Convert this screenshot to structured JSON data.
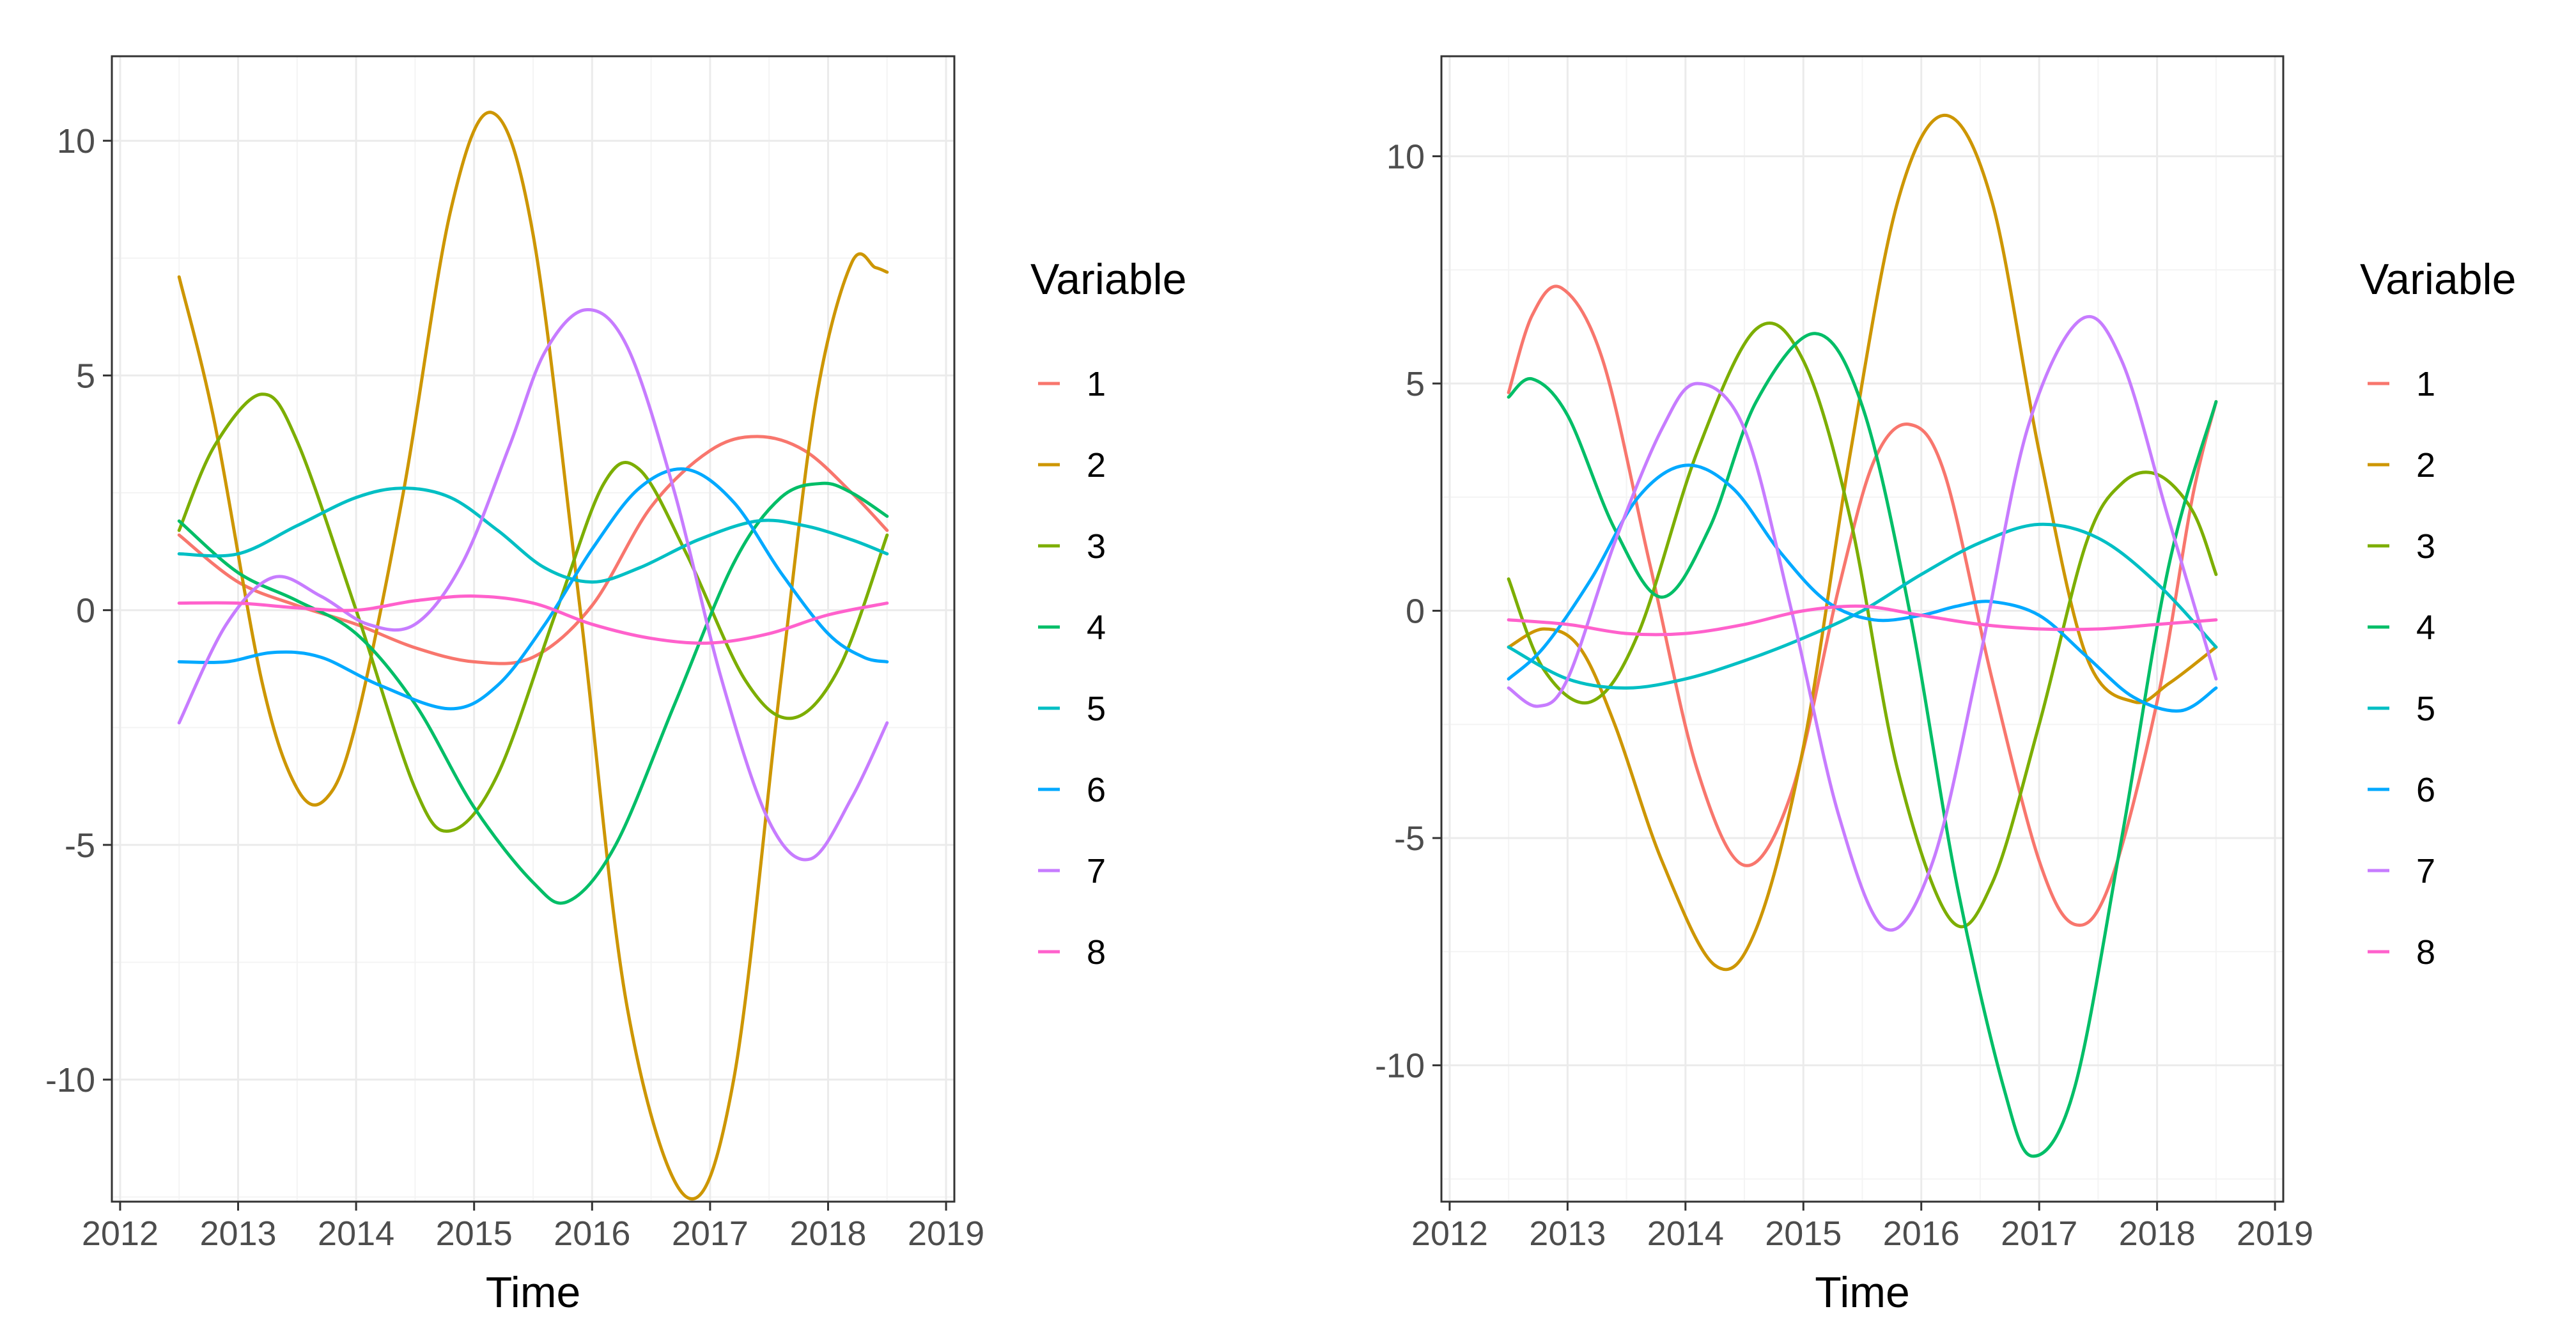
{
  "colors": {
    "1": "#F8766D",
    "2": "#CD9600",
    "3": "#7CAE00",
    "4": "#00BE67",
    "5": "#00BFC4",
    "6": "#00A9FF",
    "7": "#C77CFF",
    "8": "#FF61CC"
  },
  "chart_data": [
    {
      "type": "line",
      "title": "",
      "xlabel": "Time",
      "ylabel": "",
      "xlim": [
        2011.93,
        2019.07
      ],
      "ylim": [
        -12.6,
        11.8
      ],
      "xticks": [
        2012,
        2013,
        2014,
        2015,
        2016,
        2017,
        2018,
        2019
      ],
      "xtick_labels": [
        "2012",
        "2013",
        "2014",
        "2015",
        "2016",
        "2017",
        "2018",
        "2019"
      ],
      "yticks": [
        -10,
        -5,
        0,
        5,
        10
      ],
      "ytick_labels": [
        "-10",
        "-5",
        "0",
        "5",
        "10"
      ],
      "legend": {
        "title": "Variable",
        "position": "right",
        "entries": [
          "1",
          "2",
          "3",
          "4",
          "5",
          "6",
          "7",
          "8"
        ]
      },
      "series": [
        {
          "name": "1",
          "x": [
            2012.5,
            2013.0,
            2013.5,
            2014.0,
            2014.5,
            2015.0,
            2015.5,
            2016.0,
            2016.5,
            2017.0,
            2017.4,
            2017.8,
            2018.2,
            2018.5
          ],
          "y": [
            1.6,
            0.6,
            0.1,
            -0.3,
            -0.8,
            -1.1,
            -1.0,
            0.1,
            2.2,
            3.4,
            3.7,
            3.4,
            2.5,
            1.7
          ]
        },
        {
          "name": "2",
          "x": [
            2012.5,
            2012.8,
            2013.2,
            2013.5,
            2013.75,
            2014.0,
            2014.4,
            2014.8,
            2015.15,
            2015.5,
            2015.9,
            2016.3,
            2016.8,
            2017.2,
            2017.6,
            2017.9,
            2018.2,
            2018.4,
            2018.5
          ],
          "y": [
            7.1,
            4.0,
            -1.5,
            -3.8,
            -4.0,
            -2.4,
            2.5,
            8.5,
            10.6,
            8.0,
            0.0,
            -8.5,
            -12.5,
            -10.0,
            -1.5,
            4.5,
            7.4,
            7.3,
            7.2
          ]
        },
        {
          "name": "3",
          "x": [
            2012.5,
            2012.8,
            2013.2,
            2013.5,
            2014.0,
            2014.5,
            2014.8,
            2015.2,
            2015.7,
            2016.1,
            2016.4,
            2016.8,
            2017.3,
            2017.7,
            2018.1,
            2018.5
          ],
          "y": [
            1.7,
            3.5,
            4.6,
            3.6,
            0.0,
            -3.8,
            -4.7,
            -3.5,
            0.0,
            2.7,
            3.0,
            1.2,
            -1.5,
            -2.3,
            -1.2,
            1.6
          ]
        },
        {
          "name": "4",
          "x": [
            2012.5,
            2013.0,
            2013.5,
            2014.0,
            2014.5,
            2015.0,
            2015.5,
            2015.8,
            2016.2,
            2016.7,
            2017.2,
            2017.6,
            2017.95,
            2018.2,
            2018.5
          ],
          "y": [
            1.9,
            0.8,
            0.2,
            -0.5,
            -2.0,
            -4.2,
            -5.8,
            -6.2,
            -5.0,
            -2.0,
            1.0,
            2.4,
            2.7,
            2.5,
            2.0
          ]
        },
        {
          "name": "5",
          "x": [
            2012.5,
            2013.0,
            2013.5,
            2014.0,
            2014.4,
            2014.8,
            2015.2,
            2015.6,
            2016.0,
            2016.4,
            2016.9,
            2017.4,
            2017.8,
            2018.2,
            2018.5
          ],
          "y": [
            1.2,
            1.2,
            1.8,
            2.4,
            2.6,
            2.4,
            1.7,
            0.9,
            0.6,
            0.9,
            1.5,
            1.9,
            1.8,
            1.5,
            1.2
          ]
        },
        {
          "name": "6",
          "x": [
            2012.5,
            2012.9,
            2013.3,
            2013.7,
            2014.2,
            2014.8,
            2015.2,
            2015.6,
            2016.0,
            2016.4,
            2016.8,
            2017.2,
            2017.6,
            2018.0,
            2018.3,
            2018.5
          ],
          "y": [
            -1.1,
            -1.1,
            -0.9,
            -1.0,
            -1.6,
            -2.1,
            -1.6,
            -0.3,
            1.3,
            2.6,
            3.0,
            2.3,
            0.8,
            -0.5,
            -1.0,
            -1.1
          ]
        },
        {
          "name": "7",
          "x": [
            2012.5,
            2012.9,
            2013.3,
            2013.7,
            2014.1,
            2014.5,
            2014.9,
            2015.3,
            2015.6,
            2015.95,
            2016.3,
            2016.7,
            2017.1,
            2017.5,
            2017.85,
            2018.2,
            2018.5
          ],
          "y": [
            -2.4,
            -0.3,
            0.7,
            0.3,
            -0.3,
            -0.3,
            1.0,
            3.5,
            5.5,
            6.4,
            5.6,
            2.5,
            -1.5,
            -4.5,
            -5.3,
            -4.0,
            -2.4
          ]
        },
        {
          "name": "8",
          "x": [
            2012.5,
            2013.0,
            2013.5,
            2014.0,
            2014.5,
            2015.0,
            2015.5,
            2016.0,
            2016.5,
            2017.0,
            2017.5,
            2018.0,
            2018.5
          ],
          "y": [
            0.15,
            0.15,
            0.05,
            0.0,
            0.2,
            0.3,
            0.15,
            -0.3,
            -0.6,
            -0.7,
            -0.5,
            -0.1,
            0.15
          ]
        }
      ]
    },
    {
      "type": "line",
      "title": "",
      "xlabel": "Time",
      "ylabel": "",
      "xlim": [
        2011.93,
        2019.07
      ],
      "ylim": [
        -13.0,
        12.2
      ],
      "xticks": [
        2012,
        2013,
        2014,
        2015,
        2016,
        2017,
        2018,
        2019
      ],
      "xtick_labels": [
        "2012",
        "2013",
        "2014",
        "2015",
        "2016",
        "2017",
        "2018",
        "2019"
      ],
      "yticks": [
        -10,
        -5,
        0,
        5,
        10
      ],
      "ytick_labels": [
        "-10",
        "-5",
        "0",
        "5",
        "10"
      ],
      "legend": {
        "title": "Variable",
        "position": "right",
        "entries": [
          "1",
          "2",
          "3",
          "4",
          "5",
          "6",
          "7",
          "8"
        ]
      },
      "series": [
        {
          "name": "1",
          "x": [
            2012.5,
            2012.7,
            2012.95,
            2013.3,
            2013.7,
            2014.1,
            2014.5,
            2014.9,
            2015.3,
            2015.6,
            2015.9,
            2016.2,
            2016.6,
            2017.0,
            2017.3,
            2017.6,
            2018.0,
            2018.3,
            2018.5
          ],
          "y": [
            4.8,
            6.5,
            7.1,
            5.5,
            1.0,
            -3.5,
            -5.6,
            -4.0,
            0.5,
            3.3,
            4.1,
            3.0,
            -1.5,
            -5.5,
            -6.9,
            -6.0,
            -2.0,
            2.5,
            4.6
          ]
        },
        {
          "name": "2",
          "x": [
            2012.5,
            2012.8,
            2013.1,
            2013.4,
            2013.8,
            2014.25,
            2014.6,
            2015.0,
            2015.4,
            2015.8,
            2016.2,
            2016.6,
            2017.0,
            2017.4,
            2017.8,
            2018.1,
            2018.5
          ],
          "y": [
            -0.8,
            -0.4,
            -0.8,
            -2.5,
            -5.5,
            -7.8,
            -7.0,
            -3.0,
            3.5,
            9.0,
            10.9,
            9.0,
            3.5,
            -1.0,
            -2.0,
            -1.6,
            -0.8
          ]
        },
        {
          "name": "3",
          "x": [
            2012.5,
            2012.8,
            2013.2,
            2013.6,
            2014.1,
            2014.6,
            2015.0,
            2015.4,
            2015.8,
            2016.25,
            2016.6,
            2017.0,
            2017.4,
            2017.7,
            2018.0,
            2018.3,
            2018.5
          ],
          "y": [
            0.7,
            -1.3,
            -2.0,
            -0.5,
            3.5,
            6.2,
            5.5,
            2.0,
            -3.5,
            -6.8,
            -6.0,
            -2.5,
            1.5,
            2.8,
            3.0,
            2.2,
            0.8
          ]
        },
        {
          "name": "4",
          "x": [
            2012.5,
            2012.7,
            2013.0,
            2013.4,
            2013.8,
            2014.2,
            2014.6,
            2015.1,
            2015.5,
            2015.9,
            2016.3,
            2016.7,
            2016.95,
            2017.3,
            2017.7,
            2018.1,
            2018.5
          ],
          "y": [
            4.7,
            5.1,
            4.3,
            1.8,
            0.3,
            1.8,
            4.6,
            6.1,
            4.5,
            0.0,
            -6.0,
            -10.5,
            -12.0,
            -10.5,
            -5.0,
            1.0,
            4.6
          ]
        },
        {
          "name": "5",
          "x": [
            2012.5,
            2013.0,
            2013.5,
            2014.0,
            2014.5,
            2015.0,
            2015.5,
            2016.0,
            2016.5,
            2017.0,
            2017.5,
            2018.0,
            2018.5
          ],
          "y": [
            -0.8,
            -1.5,
            -1.7,
            -1.5,
            -1.1,
            -0.6,
            0.0,
            0.8,
            1.5,
            1.9,
            1.6,
            0.6,
            -0.8
          ]
        },
        {
          "name": "6",
          "x": [
            2012.5,
            2012.8,
            2013.2,
            2013.6,
            2014.0,
            2014.4,
            2014.8,
            2015.2,
            2015.6,
            2016.0,
            2016.3,
            2016.6,
            2017.0,
            2017.4,
            2017.8,
            2018.2,
            2018.5
          ],
          "y": [
            -1.5,
            -0.8,
            0.7,
            2.5,
            3.2,
            2.7,
            1.3,
            0.2,
            -0.2,
            -0.1,
            0.1,
            0.2,
            -0.1,
            -1.0,
            -1.9,
            -2.2,
            -1.7
          ]
        },
        {
          "name": "7",
          "x": [
            2012.5,
            2012.75,
            2013.0,
            2013.4,
            2013.8,
            2014.1,
            2014.5,
            2014.9,
            2015.3,
            2015.7,
            2016.1,
            2016.5,
            2016.9,
            2017.35,
            2017.7,
            2018.1,
            2018.5
          ],
          "y": [
            -1.7,
            -2.1,
            -1.5,
            1.5,
            4.0,
            5.0,
            4.0,
            0.0,
            -4.5,
            -7.0,
            -5.5,
            -1.0,
            4.0,
            6.4,
            5.5,
            2.0,
            -1.5
          ]
        },
        {
          "name": "8",
          "x": [
            2012.5,
            2013.0,
            2013.5,
            2014.0,
            2014.5,
            2015.0,
            2015.5,
            2016.0,
            2016.5,
            2017.0,
            2017.5,
            2018.0,
            2018.5
          ],
          "y": [
            -0.2,
            -0.3,
            -0.5,
            -0.5,
            -0.3,
            0.0,
            0.1,
            -0.1,
            -0.3,
            -0.4,
            -0.4,
            -0.3,
            -0.2
          ]
        }
      ]
    }
  ]
}
